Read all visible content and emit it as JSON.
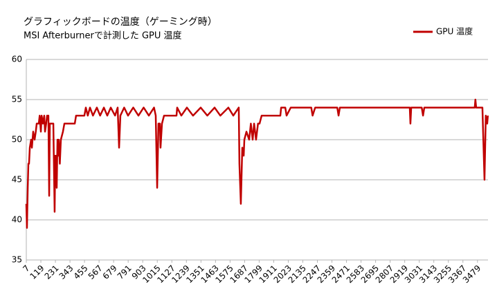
{
  "chart_data": {
    "type": "line",
    "title": "グラフィックボードの温度（ゲーミング時）",
    "subtitle": "MSI Afterburnerで計測した GPU 温度",
    "legend": "top-right",
    "grid": true,
    "xlim": [
      7,
      3560
    ],
    "xticks": [
      7,
      119,
      231,
      343,
      455,
      567,
      679,
      791,
      903,
      1015,
      1127,
      1239,
      1351,
      1463,
      1575,
      1687,
      1799,
      1911,
      2023,
      2135,
      2247,
      2359,
      2471,
      2583,
      2695,
      2807,
      2919,
      3031,
      3143,
      3255,
      3367,
      3479
    ],
    "ylim": [
      35,
      60
    ],
    "yticks": [
      35,
      40,
      45,
      50,
      55,
      60
    ],
    "x": [
      7,
      12,
      18,
      23,
      28,
      34,
      44,
      50,
      60,
      71,
      80,
      87,
      103,
      110,
      119,
      125,
      135,
      145,
      151,
      160,
      167,
      177,
      183,
      188,
      204,
      215,
      225,
      230,
      236,
      241,
      247,
      252,
      257,
      265,
      273,
      289,
      300,
      327,
      380,
      390,
      454,
      465,
      480,
      497,
      520,
      550,
      575,
      604,
      630,
      657,
      690,
      710,
      721,
      731,
      760,
      790,
      830,
      870,
      910,
      950,
      990,
      1003,
      1014,
      1024,
      1035,
      1040,
      1051,
      1067,
      1163,
      1168,
      1200,
      1243,
      1290,
      1349,
      1400,
      1456,
      1500,
      1562,
      1600,
      1642,
      1647,
      1658,
      1669,
      1680,
      1685,
      1701,
      1722,
      1735,
      1749,
      1760,
      1775,
      1790,
      1802,
      1818,
      1962,
      1968,
      2000,
      2010,
      2042,
      2200,
      2210,
      2230,
      2400,
      2410,
      2420,
      2958,
      2963,
      2969,
      3050,
      3060,
      3070,
      3458,
      3463,
      3469,
      3517,
      3533,
      3543,
      3554,
      3559
    ],
    "series": [
      {
        "name": "GPU 温度",
        "color": "#c00000",
        "values": [
          42,
          39,
          44,
          47,
          47,
          49,
          50,
          49,
          51,
          50,
          51,
          52,
          52,
          53,
          51,
          53,
          52,
          53,
          51,
          52,
          53,
          53,
          43,
          52,
          52,
          52,
          41,
          48,
          48,
          44,
          50,
          48,
          50,
          47,
          50,
          51,
          52,
          52,
          52,
          53,
          53,
          54,
          53,
          54,
          53,
          54,
          53,
          54,
          53,
          54,
          53,
          54,
          49,
          53,
          54,
          53,
          54,
          53,
          54,
          53,
          54,
          53,
          44,
          52,
          52,
          49,
          52,
          53,
          53,
          54,
          53,
          54,
          53,
          54,
          53,
          54,
          53,
          54,
          53,
          54,
          47,
          42,
          49,
          48,
          50,
          51,
          50,
          52,
          50,
          52,
          50,
          52,
          52,
          53,
          53,
          54,
          54,
          53,
          54,
          54,
          53,
          54,
          54,
          53,
          54,
          54,
          52,
          54,
          54,
          53,
          54,
          54,
          55,
          54,
          54,
          45,
          53,
          52,
          53
        ]
      }
    ]
  }
}
